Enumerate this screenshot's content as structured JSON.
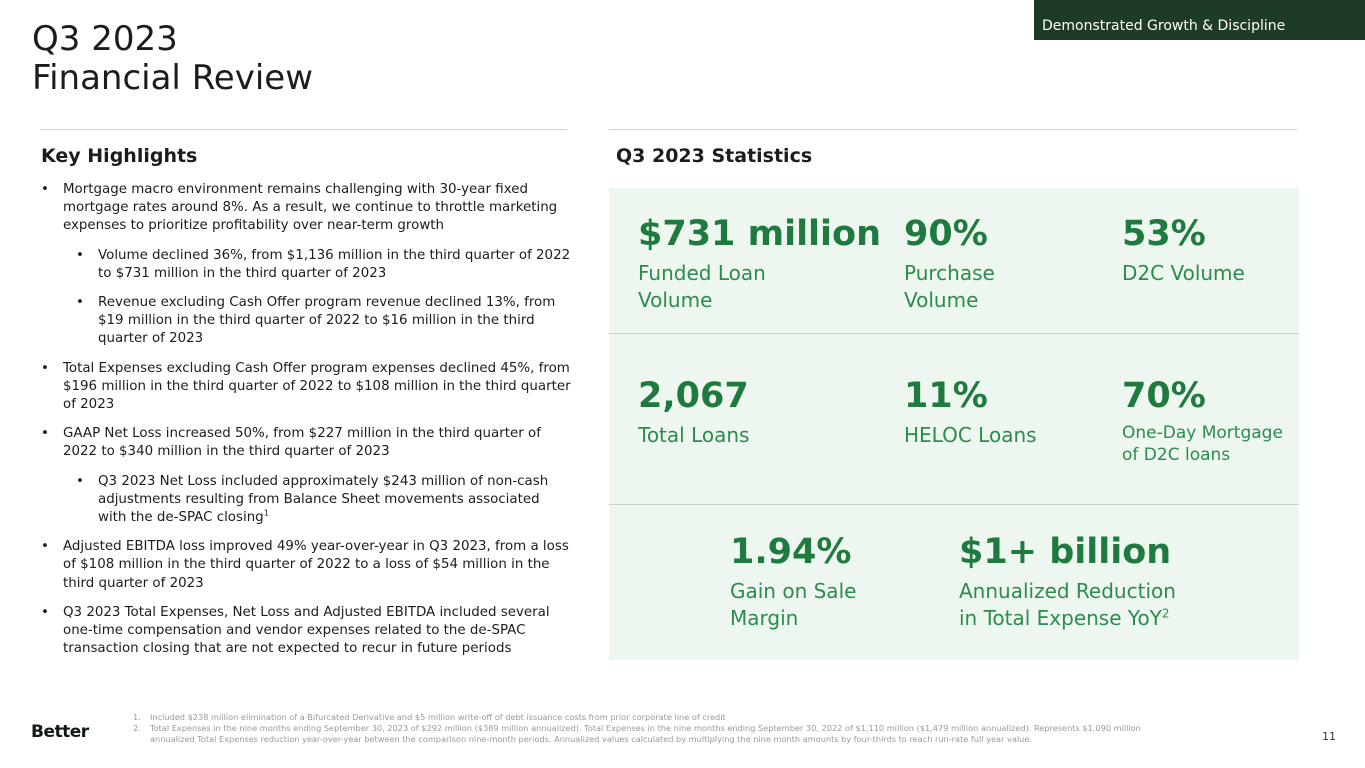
{
  "header": {
    "section_tag": "Demonstrated Growth & Discipline",
    "title_line1": "Q3 2023",
    "title_line2": "Financial Review"
  },
  "left": {
    "heading": "Key Highlights",
    "bullets": [
      {
        "level": 1,
        "text": "Mortgage macro environment remains challenging with 30-year fixed mortgage rates around 8%. As a result, we continue to throttle marketing expenses to prioritize profitability over near-term growth"
      },
      {
        "level": 2,
        "text": "Volume declined 36%, from $1,136 million in the third quarter of 2022 to $731 million in the third quarter of 2023"
      },
      {
        "level": 2,
        "text": "Revenue excluding Cash Offer program revenue declined 13%, from $19 million in the third quarter of 2022 to $16 million in the third quarter of 2023"
      },
      {
        "level": 1,
        "text": "Total Expenses excluding Cash Offer program expenses declined 45%, from $196 million in the third quarter of 2022 to $108 million in the third quarter of 2023"
      },
      {
        "level": 1,
        "text": "GAAP Net Loss increased 50%, from $227 million in the third quarter of 2022 to $340 million in the third quarter of 2023"
      },
      {
        "level": 2,
        "text": "Q3 2023 Net Loss included approximately $243 million of non-cash adjustments resulting from Balance Sheet movements associated with the de-SPAC closing",
        "sup": "1"
      },
      {
        "level": 1,
        "text": "Adjusted EBITDA loss improved 49% year-over-year in Q3 2023, from a loss of $108 million in the third quarter of 2022 to a loss of $54 million in the third quarter of 2023"
      },
      {
        "level": 1,
        "text": "Q3 2023 Total Expenses, Net Loss and Adjusted EBITDA included several one-time compensation and vendor expenses related to the de-SPAC transaction closing that are not expected to recur in future periods"
      }
    ]
  },
  "right": {
    "heading": "Q3 2023 Statistics",
    "stats": {
      "funded_volume": {
        "value": "$731 million",
        "label_l1": "Funded Loan",
        "label_l2": "Volume"
      },
      "purchase": {
        "value": "90%",
        "label_l1": "Purchase",
        "label_l2": "Volume"
      },
      "d2c": {
        "value": "53%",
        "label_l1": "D2C Volume"
      },
      "total_loans": {
        "value": "2,067",
        "label_l1": "Total Loans"
      },
      "heloc": {
        "value": "11%",
        "label_l1": "HELOC Loans"
      },
      "one_day": {
        "value": "70%",
        "label_l1": "One-Day Mortgage",
        "label_l2": "of D2C loans"
      },
      "gain_on_sale": {
        "value": "1.94%",
        "label_l1": "Gain on Sale",
        "label_l2": "Margin"
      },
      "reduction": {
        "value": "$1+ billion",
        "label_l1": "Annualized Reduction",
        "label_l2": "in Total Expense YoY",
        "sup": "2"
      }
    }
  },
  "footer": {
    "logo": "Better",
    "footnotes": [
      {
        "num": "1.",
        "text": "Included $238 million elimination of a Bifurcated Derivative and $5 million write-off of debt issuance costs from prior corporate line of credit"
      },
      {
        "num": "2.",
        "text": "Total Expenses in the nine months ending September 30, 2023 of $292 million ($389 million annualized). Total Expenses in the nine months ending September 30, 2022 of $1,110 million ($1,479 million annualized). Represents $1,090 million annualized Total Expenses reduction year-over-year between the comparison nine-month periods. Annualized values calculated by multiplying the nine month amounts by four-thirds to reach run-rate full year value."
      }
    ],
    "page_number": "11"
  }
}
